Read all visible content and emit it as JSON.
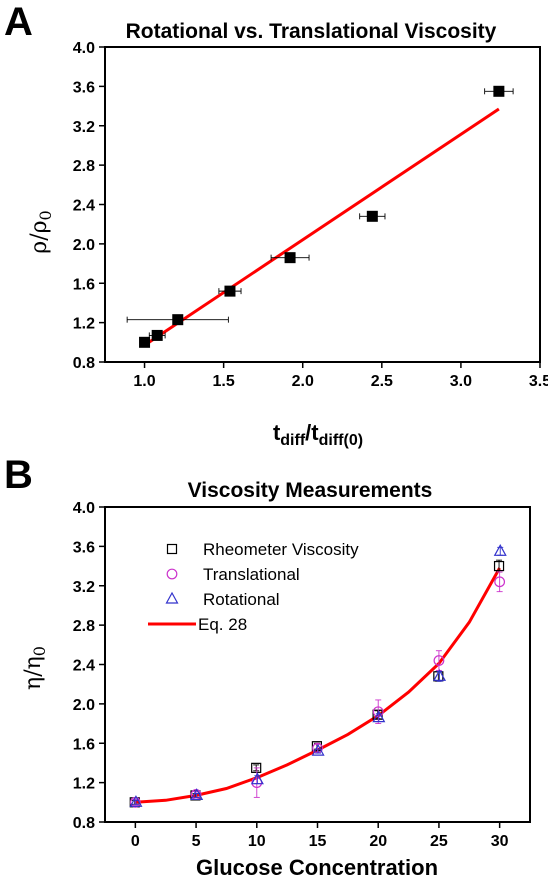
{
  "panel_a_letter": "A",
  "panel_b_letter": "B",
  "chart_data": [
    {
      "type": "scatter",
      "title": "Rotational vs. Translational Viscosity",
      "xlabel": "t",
      "xlabel_sub1": "diff",
      "xlabel_sep": "/t",
      "xlabel_sub2": "diff(0)",
      "ylabel": "ρ/ρ",
      "ylabel_sub": "0",
      "xlim": [
        0.75,
        3.5
      ],
      "ylim": [
        0.8,
        4.0
      ],
      "xticks": [
        "1.0",
        "1.5",
        "2.0",
        "2.5",
        "3.0",
        "3.5"
      ],
      "yticks": [
        "0.8",
        "1.2",
        "1.6",
        "2.0",
        "2.4",
        "2.8",
        "3.2",
        "3.6",
        "4.0"
      ],
      "series": [
        {
          "marker": "filled-square",
          "color": "#000000",
          "x": [
            1.0,
            1.08,
            1.21,
            1.54,
            1.92,
            2.44,
            3.24
          ],
          "y": [
            1.0,
            1.07,
            1.23,
            1.52,
            1.86,
            2.28,
            3.55
          ],
          "xerr": [
            0.02,
            0.05,
            0.32,
            0.07,
            0.12,
            0.08,
            0.09
          ],
          "yerr": [
            0.03,
            0.02,
            0.04,
            0.02,
            0.04,
            0.03,
            0.04
          ]
        }
      ],
      "fit_line": {
        "color": "#ff0000",
        "x": [
          1.0,
          3.24
        ],
        "y": [
          0.97,
          3.37
        ]
      }
    },
    {
      "type": "scatter",
      "title": "Viscosity Measurements",
      "xlabel": "Glucose Concentration",
      "ylabel": "η/η",
      "ylabel_sub": "0",
      "xlim": [
        -2.5,
        32.5
      ],
      "ylim": [
        0.8,
        4.0
      ],
      "xticks": [
        "0",
        "5",
        "10",
        "15",
        "20",
        "25",
        "30"
      ],
      "yticks": [
        "0.8",
        "1.2",
        "1.6",
        "2.0",
        "2.4",
        "2.8",
        "3.2",
        "3.6",
        "4.0"
      ],
      "legend_position": "top-left",
      "series": [
        {
          "name": "Rheometer Viscosity",
          "marker": "open-square",
          "color": "#000000",
          "x": [
            0,
            5,
            10,
            15,
            20,
            25,
            30
          ],
          "y": [
            1.0,
            1.07,
            1.35,
            1.57,
            1.89,
            2.28,
            3.4
          ],
          "yerr": [
            0.02,
            0.02,
            0.03,
            0.03,
            0.04,
            0.05,
            0.06
          ]
        },
        {
          "name": "Translational",
          "marker": "open-circle",
          "color": "#cc33cc",
          "x": [
            0,
            5,
            10,
            15,
            20,
            25,
            30
          ],
          "y": [
            1.0,
            1.08,
            1.2,
            1.55,
            1.92,
            2.44,
            3.24
          ],
          "yerr": [
            0.03,
            0.03,
            0.15,
            0.04,
            0.12,
            0.1,
            0.1
          ]
        },
        {
          "name": "Rotational",
          "marker": "open-triangle",
          "color": "#3333cc",
          "x": [
            0,
            5,
            10,
            15,
            20,
            25,
            30
          ],
          "y": [
            1.0,
            1.07,
            1.23,
            1.52,
            1.86,
            2.28,
            3.55
          ],
          "yerr": [
            0.02,
            0.02,
            0.04,
            0.02,
            0.04,
            0.05,
            0.04
          ]
        },
        {
          "name": "Eq. 28",
          "marker": "line",
          "color": "#ff0000",
          "x": [
            0,
            2.5,
            5,
            7.5,
            10,
            12.5,
            15,
            17.5,
            20,
            22.5,
            25,
            27.5,
            30
          ],
          "y": [
            1.0,
            1.02,
            1.07,
            1.14,
            1.25,
            1.38,
            1.53,
            1.69,
            1.88,
            2.12,
            2.41,
            2.83,
            3.38
          ]
        }
      ]
    }
  ]
}
